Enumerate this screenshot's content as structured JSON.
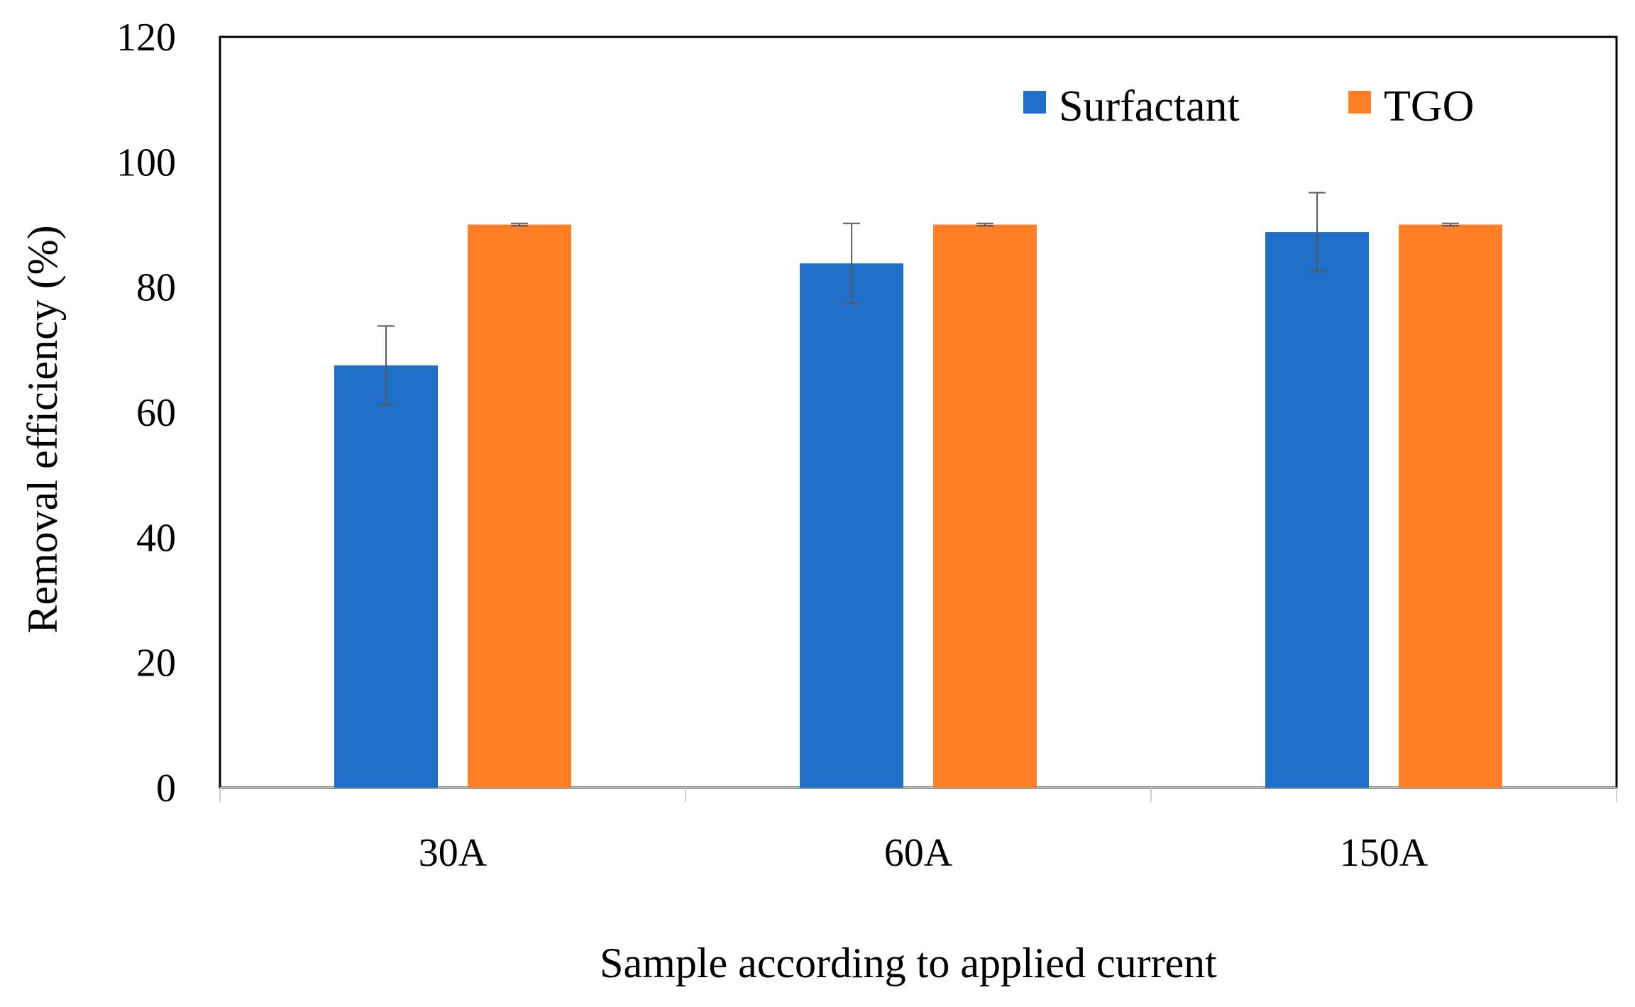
{
  "chart_data": {
    "type": "bar",
    "title": "",
    "xlabel": "Sample according to applied current",
    "ylabel": "Removal efficiency (%)",
    "ylim": [
      0,
      120
    ],
    "yticks": [
      "0",
      "20",
      "40",
      "60",
      "80",
      "100",
      "120"
    ],
    "categories": [
      "30A",
      "60A",
      "150A"
    ],
    "series": [
      {
        "name": "Surfactant",
        "color": "#1f6fc8",
        "values": [
          67.5,
          83.8,
          88.8
        ],
        "errors": [
          6.3,
          6.4,
          6.3
        ]
      },
      {
        "name": "TGO",
        "color": "#fe7f27",
        "values": [
          90.0,
          90.0,
          90.0
        ],
        "errors": [
          0.2,
          0.2,
          0.2
        ]
      }
    ],
    "legend_position": "top-right",
    "grid": false
  }
}
